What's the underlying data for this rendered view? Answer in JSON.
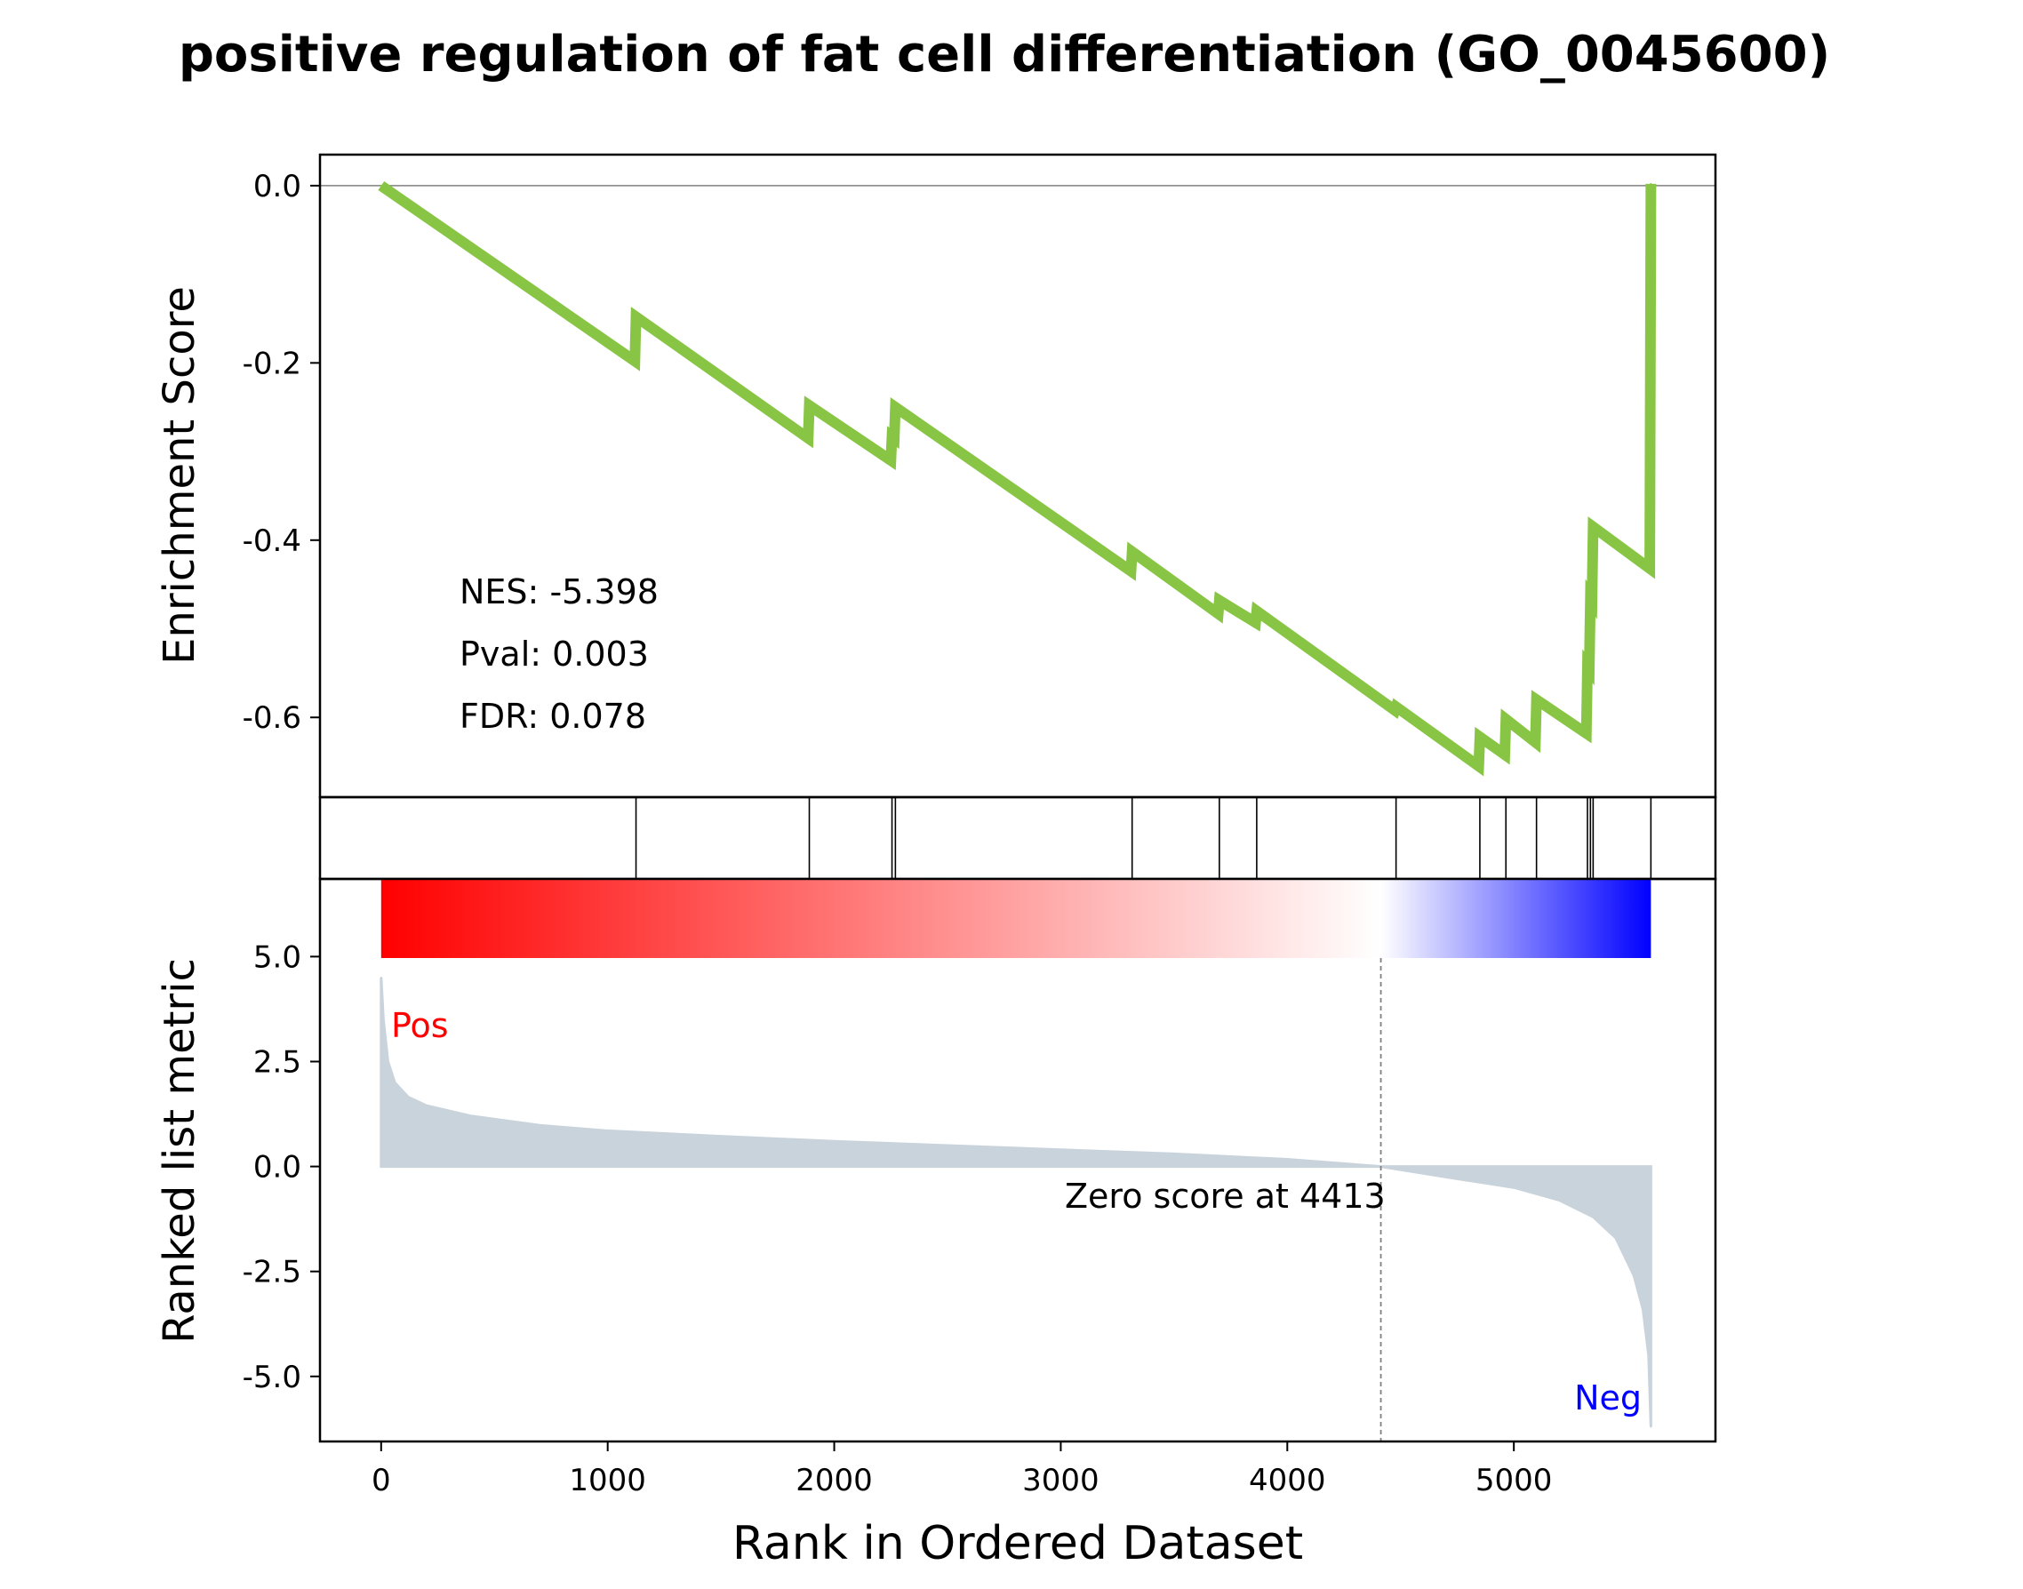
{
  "title": "positive regulation of fat cell differentiation (GO_0045600)",
  "chart_data": [
    {
      "type": "line",
      "panel": "enrichment",
      "ylabel": "Enrichment Score",
      "ylim": [
        -0.69,
        0.035
      ],
      "yticks": [
        0.0,
        -0.2,
        -0.4,
        -0.6
      ],
      "ytick_labels": [
        "0.0",
        "-0.2",
        "-0.4",
        "-0.6"
      ],
      "xlim": [
        -270,
        5890
      ],
      "line_color": "#88c544",
      "zero_line": true,
      "annotations": [
        "NES: -5.398",
        "Pval: 0.003",
        "FDR: 0.078"
      ],
      "points": [
        {
          "x": 0,
          "y": 0.0
        },
        {
          "x": 1120,
          "y": -0.198
        },
        {
          "x": 1125,
          "y": -0.148
        },
        {
          "x": 1885,
          "y": -0.285
        },
        {
          "x": 1890,
          "y": -0.248
        },
        {
          "x": 2250,
          "y": -0.31
        },
        {
          "x": 2255,
          "y": -0.283
        },
        {
          "x": 2265,
          "y": -0.285
        },
        {
          "x": 2270,
          "y": -0.25
        },
        {
          "x": 3310,
          "y": -0.435
        },
        {
          "x": 3315,
          "y": -0.413
        },
        {
          "x": 3695,
          "y": -0.483
        },
        {
          "x": 3700,
          "y": -0.468
        },
        {
          "x": 3860,
          "y": -0.493
        },
        {
          "x": 3865,
          "y": -0.48
        },
        {
          "x": 4475,
          "y": -0.592
        },
        {
          "x": 4480,
          "y": -0.588
        },
        {
          "x": 4845,
          "y": -0.655
        },
        {
          "x": 4850,
          "y": -0.622
        },
        {
          "x": 4960,
          "y": -0.642
        },
        {
          "x": 4965,
          "y": -0.602
        },
        {
          "x": 5095,
          "y": -0.628
        },
        {
          "x": 5100,
          "y": -0.58
        },
        {
          "x": 5320,
          "y": -0.618
        },
        {
          "x": 5325,
          "y": -0.542
        },
        {
          "x": 5333,
          "y": -0.545
        },
        {
          "x": 5338,
          "y": -0.465
        },
        {
          "x": 5345,
          "y": -0.468
        },
        {
          "x": 5350,
          "y": -0.385
        },
        {
          "x": 5600,
          "y": -0.432
        },
        {
          "x": 5605,
          "y": 0.002
        }
      ]
    },
    {
      "type": "rug",
      "panel": "hits",
      "hits": [
        1125,
        1890,
        2255,
        2270,
        3315,
        3700,
        3865,
        4480,
        4850,
        4965,
        5100,
        5325,
        5338,
        5350,
        5605
      ]
    },
    {
      "type": "area",
      "panel": "ranked-metric",
      "ylabel": "Ranked list metric",
      "xlabel": "Rank in Ordered Dataset",
      "ylim": [
        -6.55,
        6.85
      ],
      "yticks": [
        5.0,
        2.5,
        0.0,
        -2.5,
        -5.0
      ],
      "ytick_labels": [
        "5.0",
        "2.5",
        "0.0",
        "-2.5",
        "-5.0"
      ],
      "xlim": [
        -270,
        5890
      ],
      "xticks": [
        0,
        1000,
        2000,
        3000,
        4000,
        5000
      ],
      "xtick_labels": [
        "0",
        "1000",
        "2000",
        "3000",
        "4000",
        "5000"
      ],
      "fill_color": "#c9d3dc",
      "zero_score_rank": 4413,
      "zero_score_label": "Zero score at 4413",
      "pos_label": "Pos",
      "neg_label": "Neg",
      "pos_color": "#ff0000",
      "neg_color": "#0000ff",
      "colorbar": {
        "from": "#ff0000",
        "mid": "#ffffff",
        "to": "#0000ff"
      },
      "points": [
        {
          "x": 0,
          "y": 4.5
        },
        {
          "x": 10,
          "y": 3.5
        },
        {
          "x": 30,
          "y": 2.5
        },
        {
          "x": 60,
          "y": 2.0
        },
        {
          "x": 120,
          "y": 1.65
        },
        {
          "x": 200,
          "y": 1.45
        },
        {
          "x": 400,
          "y": 1.2
        },
        {
          "x": 700,
          "y": 0.98
        },
        {
          "x": 1000,
          "y": 0.85
        },
        {
          "x": 1500,
          "y": 0.72
        },
        {
          "x": 2000,
          "y": 0.6
        },
        {
          "x": 2500,
          "y": 0.5
        },
        {
          "x": 3000,
          "y": 0.4
        },
        {
          "x": 3500,
          "y": 0.3
        },
        {
          "x": 4000,
          "y": 0.17
        },
        {
          "x": 4413,
          "y": 0.0
        },
        {
          "x": 4700,
          "y": -0.25
        },
        {
          "x": 5000,
          "y": -0.5
        },
        {
          "x": 5200,
          "y": -0.8
        },
        {
          "x": 5350,
          "y": -1.2
        },
        {
          "x": 5450,
          "y": -1.7
        },
        {
          "x": 5530,
          "y": -2.6
        },
        {
          "x": 5570,
          "y": -3.4
        },
        {
          "x": 5595,
          "y": -4.5
        },
        {
          "x": 5605,
          "y": -6.2
        }
      ]
    }
  ]
}
